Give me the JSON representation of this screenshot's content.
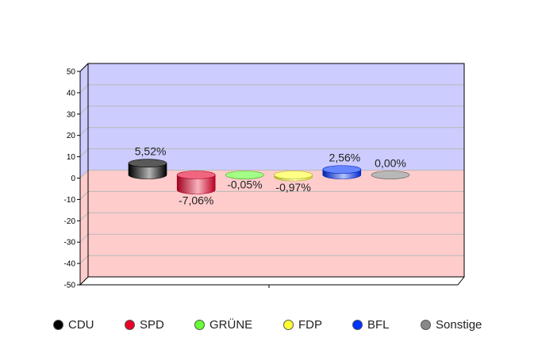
{
  "chart_data": {
    "type": "bar",
    "style": "3d-cylinder",
    "title": "",
    "xlabel": "",
    "ylabel": "",
    "categories": [
      "CDU",
      "SPD",
      "GRÜNE",
      "FDP",
      "BFL",
      "Sonstige"
    ],
    "values": [
      5.52,
      -7.06,
      -0.05,
      -0.97,
      2.56,
      0.0
    ],
    "data_labels": [
      "5,52%",
      "-7,06%",
      "-0,05%",
      "-0,97%",
      "2,56%",
      "0,00%"
    ],
    "colors": [
      "#000000",
      "#e8002a",
      "#66ff33",
      "#ffff33",
      "#0033ff",
      "#888888"
    ],
    "ylim": [
      -50,
      50
    ],
    "yticks": [
      50,
      40,
      30,
      20,
      10,
      0,
      -10,
      -20,
      -30,
      -40,
      -50
    ],
    "ytick_labels": [
      "50",
      "40",
      "30",
      "20",
      "10",
      "0",
      "-10",
      "-20",
      "-30",
      "-40",
      "-50"
    ],
    "grid": true,
    "positive_area_color": "#ccccff",
    "negative_area_color": "#ffcccc",
    "legend_position": "bottom"
  }
}
